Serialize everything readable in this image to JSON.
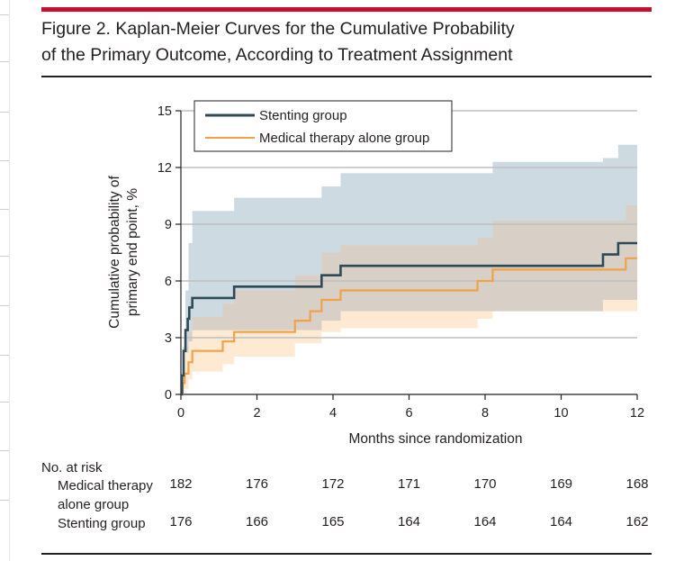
{
  "colors": {
    "accent_bar": "#c8102e",
    "stent": "#2e4a57",
    "stent_band": "#c9d6df",
    "medical": "#f0a14b",
    "medical_band": "#fde3c4",
    "overlap": "#d8d0c6",
    "grid": "#bfbfbf",
    "text": "#231f20"
  },
  "figure": {
    "title_line1": "Figure 2. Kaplan-Meier Curves for the Cumulative Probability",
    "title_line2": "of the Primary Outcome, According to Treatment Assignment"
  },
  "chart_data": {
    "type": "line",
    "subtype": "kaplan-meier step curves with confidence bands",
    "xlabel": "Months since randomization",
    "ylabel_line1": "Cumulative probability of",
    "ylabel_line2": "primary end point, %",
    "xlim": [
      0,
      12
    ],
    "ylim": [
      0,
      15
    ],
    "xticks": [
      0,
      2,
      4,
      6,
      8,
      10,
      12
    ],
    "yticks": [
      0,
      3,
      6,
      9,
      12,
      15
    ],
    "grid": "horizontal",
    "legend_position": "top-left inside",
    "series": [
      {
        "name": "Stenting group",
        "color": "#2e4a57",
        "band_color": "#c9d6df",
        "steps": [
          [
            0,
            0
          ],
          [
            0.03,
            1.0
          ],
          [
            0.07,
            2.3
          ],
          [
            0.12,
            3.4
          ],
          [
            0.18,
            4.0
          ],
          [
            0.22,
            4.6
          ],
          [
            0.3,
            5.1
          ],
          [
            1.4,
            5.7
          ],
          [
            3.7,
            6.3
          ],
          [
            4.2,
            6.8
          ],
          [
            11.1,
            7.4
          ],
          [
            11.5,
            8.0
          ],
          [
            12,
            8.0
          ]
        ],
        "lower": [
          [
            0,
            0
          ],
          [
            0.05,
            0.5
          ],
          [
            0.1,
            1.2
          ],
          [
            0.2,
            2.2
          ],
          [
            0.3,
            2.8
          ],
          [
            3.7,
            3.4
          ],
          [
            4.2,
            3.9
          ],
          [
            11.1,
            4.4
          ],
          [
            11.5,
            5.0
          ],
          [
            12,
            5.0
          ]
        ],
        "upper": [
          [
            0,
            0
          ],
          [
            0.05,
            2.5
          ],
          [
            0.12,
            5.5
          ],
          [
            0.2,
            8.0
          ],
          [
            0.3,
            9.7
          ],
          [
            1.4,
            10.4
          ],
          [
            3.7,
            11.0
          ],
          [
            4.2,
            11.7
          ],
          [
            8.2,
            12.3
          ],
          [
            11.1,
            12.5
          ],
          [
            11.5,
            13.2
          ],
          [
            12,
            13.2
          ]
        ]
      },
      {
        "name": "Medical therapy alone group",
        "color": "#f0a14b",
        "band_color": "#fde3c4",
        "steps": [
          [
            0,
            0
          ],
          [
            0.05,
            0.6
          ],
          [
            0.1,
            1.1
          ],
          [
            0.2,
            1.7
          ],
          [
            0.3,
            2.3
          ],
          [
            1.1,
            2.8
          ],
          [
            1.4,
            3.3
          ],
          [
            3.0,
            3.9
          ],
          [
            3.4,
            4.4
          ],
          [
            3.7,
            5.0
          ],
          [
            4.2,
            5.5
          ],
          [
            7.8,
            6.0
          ],
          [
            8.2,
            6.6
          ],
          [
            11.7,
            7.2
          ],
          [
            12,
            7.2
          ]
        ],
        "lower": [
          [
            0,
            0
          ],
          [
            0.2,
            0.3
          ],
          [
            0.3,
            0.8
          ],
          [
            1.1,
            1.2
          ],
          [
            1.4,
            1.6
          ],
          [
            3.0,
            2.0
          ],
          [
            3.7,
            2.7
          ],
          [
            4.2,
            3.3
          ],
          [
            7.8,
            3.5
          ],
          [
            8.2,
            4.0
          ],
          [
            11.7,
            4.4
          ],
          [
            12,
            4.4
          ]
        ],
        "upper": [
          [
            0,
            0
          ],
          [
            0.05,
            1.8
          ],
          [
            0.1,
            2.5
          ],
          [
            0.2,
            3.3
          ],
          [
            0.3,
            4.1
          ],
          [
            1.1,
            4.8
          ],
          [
            1.4,
            5.5
          ],
          [
            3.0,
            6.3
          ],
          [
            3.7,
            7.5
          ],
          [
            4.2,
            7.9
          ],
          [
            7.8,
            8.3
          ],
          [
            8.2,
            9.2
          ],
          [
            11.7,
            10.0
          ],
          [
            12,
            10.0
          ]
        ]
      }
    ]
  },
  "risk_table": {
    "title": "No. at risk",
    "rows": [
      {
        "label_line1": "Medical therapy",
        "label_line2": "alone group",
        "values": [
          182,
          176,
          172,
          171,
          170,
          169,
          168
        ]
      },
      {
        "label_line1": "Stenting group",
        "label_line2": "",
        "values": [
          176,
          166,
          165,
          164,
          164,
          164,
          162
        ]
      }
    ]
  }
}
